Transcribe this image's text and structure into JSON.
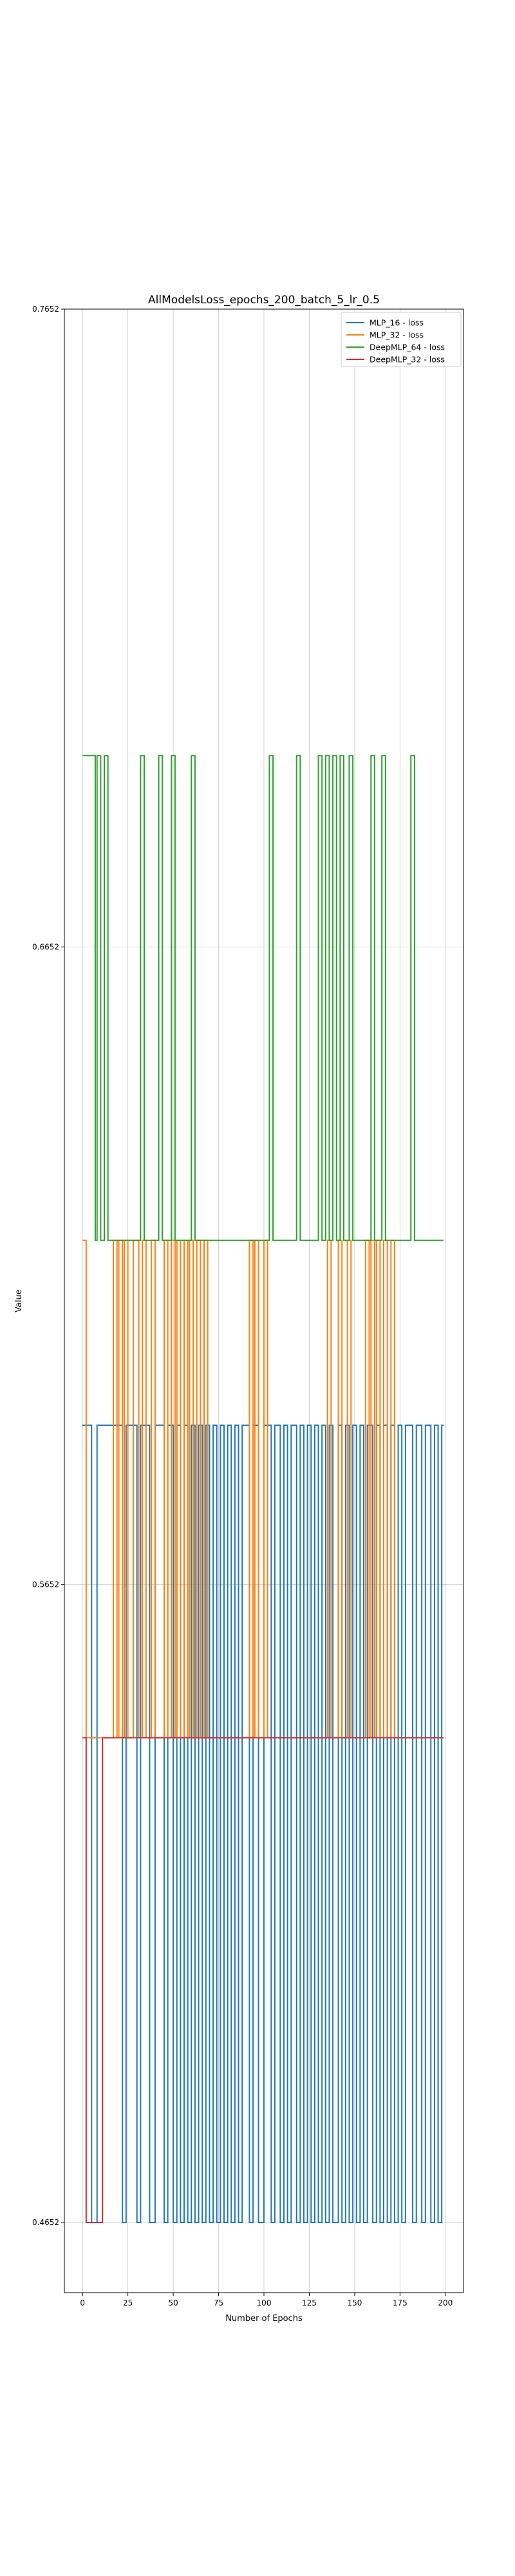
{
  "chart_data": {
    "type": "line",
    "title": "AllModelsLoss_epochs_200_batch_5_lr_0.5",
    "xlabel": "Number of Epochs",
    "ylabel": "Value",
    "xlim": [
      -10,
      210
    ],
    "ylim": [
      0.4542,
      0.7652
    ],
    "x_ticks": [
      0,
      25,
      50,
      75,
      100,
      125,
      150,
      175,
      200
    ],
    "y_ticks": [
      0.4652,
      0.5652,
      0.6652,
      0.7652
    ],
    "y_tick_labels": [
      "0.4652",
      "0.5652",
      "0.6652",
      "0.7652"
    ],
    "grid": true,
    "legend_position": "upper right",
    "series": [
      {
        "name": "MLP_16 - loss",
        "color": "#1f77b4",
        "levels": [
          0.4652,
          0.5902
        ],
        "x_start": 0,
        "x_end": 199,
        "transitions": [
          [
            0,
            1
          ],
          [
            5,
            0
          ],
          [
            8,
            1
          ],
          [
            22,
            0
          ],
          [
            24,
            1
          ],
          [
            30,
            0
          ],
          [
            32,
            1
          ],
          [
            37,
            0
          ],
          [
            40,
            1
          ],
          [
            45,
            0
          ],
          [
            47,
            1
          ],
          [
            50,
            0
          ],
          [
            52,
            1
          ],
          [
            54,
            0
          ],
          [
            56,
            1
          ],
          [
            58,
            0
          ],
          [
            60,
            1
          ],
          [
            62,
            0
          ],
          [
            64,
            1
          ],
          [
            66,
            0
          ],
          [
            68,
            1
          ],
          [
            70,
            0
          ],
          [
            72,
            1
          ],
          [
            74,
            0
          ],
          [
            76,
            1
          ],
          [
            78,
            0
          ],
          [
            80,
            1
          ],
          [
            82,
            0
          ],
          [
            84,
            1
          ],
          [
            86,
            0
          ],
          [
            88,
            1
          ],
          [
            92,
            0
          ],
          [
            94,
            1
          ],
          [
            97,
            0
          ],
          [
            100,
            1
          ],
          [
            104,
            0
          ],
          [
            106,
            1
          ],
          [
            109,
            0
          ],
          [
            111,
            1
          ],
          [
            113,
            0
          ],
          [
            115,
            1
          ],
          [
            118,
            0
          ],
          [
            120,
            1
          ],
          [
            122,
            0
          ],
          [
            124,
            1
          ],
          [
            126,
            0
          ],
          [
            128,
            1
          ],
          [
            130,
            0
          ],
          [
            132,
            1
          ],
          [
            134,
            0
          ],
          [
            136,
            1
          ],
          [
            138,
            0
          ],
          [
            141,
            1
          ],
          [
            143,
            0
          ],
          [
            145,
            1
          ],
          [
            147,
            0
          ],
          [
            149,
            1
          ],
          [
            151,
            0
          ],
          [
            153,
            1
          ],
          [
            155,
            0
          ],
          [
            157,
            1
          ],
          [
            160,
            0
          ],
          [
            162,
            1
          ],
          [
            164,
            0
          ],
          [
            166,
            1
          ],
          [
            168,
            0
          ],
          [
            170,
            1
          ],
          [
            172,
            0
          ],
          [
            174,
            1
          ],
          [
            176,
            0
          ],
          [
            178,
            1
          ],
          [
            182,
            0
          ],
          [
            184,
            1
          ],
          [
            187,
            0
          ],
          [
            189,
            1
          ],
          [
            192,
            0
          ],
          [
            194,
            1
          ],
          [
            196,
            0
          ],
          [
            198,
            1
          ]
        ]
      },
      {
        "name": "MLP_32 - loss",
        "color": "#ff7f0e",
        "levels": [
          0.5412,
          0.6192
        ],
        "x_start": 0,
        "x_end": 199,
        "transitions": [
          [
            0,
            1
          ],
          [
            2,
            0
          ],
          [
            17,
            1
          ],
          [
            19,
            0
          ],
          [
            20,
            1
          ],
          [
            22,
            0
          ],
          [
            23,
            1
          ],
          [
            25,
            0
          ],
          [
            28,
            1
          ],
          [
            31,
            0
          ],
          [
            33,
            1
          ],
          [
            35,
            0
          ],
          [
            38,
            1
          ],
          [
            40,
            0
          ],
          [
            45,
            1
          ],
          [
            47,
            0
          ],
          [
            49,
            1
          ],
          [
            51,
            0
          ],
          [
            52,
            1
          ],
          [
            54,
            0
          ],
          [
            56,
            1
          ],
          [
            58,
            0
          ],
          [
            59,
            1
          ],
          [
            61,
            0
          ],
          [
            63,
            1
          ],
          [
            65,
            0
          ],
          [
            67,
            1
          ],
          [
            69,
            0
          ],
          [
            92,
            1
          ],
          [
            94,
            0
          ],
          [
            95,
            1
          ],
          [
            97,
            0
          ],
          [
            100,
            1
          ],
          [
            102,
            0
          ],
          [
            135,
            1
          ],
          [
            137,
            0
          ],
          [
            141,
            1
          ],
          [
            143,
            0
          ],
          [
            146,
            1
          ],
          [
            148,
            0
          ],
          [
            156,
            1
          ],
          [
            158,
            0
          ],
          [
            159,
            1
          ],
          [
            161,
            0
          ],
          [
            162,
            1
          ],
          [
            164,
            0
          ],
          [
            166,
            1
          ],
          [
            168,
            0
          ],
          [
            170,
            1
          ],
          [
            172,
            0
          ]
        ]
      },
      {
        "name": "DeepMLP_64 - loss",
        "color": "#2ca02c",
        "levels": [
          0.6192,
          0.6952
        ],
        "x_start": 0,
        "x_end": 199,
        "transitions": [
          [
            5,
            1
          ],
          [
            7,
            0
          ],
          [
            8,
            1
          ],
          [
            10,
            0
          ],
          [
            12,
            1
          ],
          [
            14,
            0
          ],
          [
            32,
            1
          ],
          [
            34,
            0
          ],
          [
            42,
            1
          ],
          [
            44,
            0
          ],
          [
            49,
            1
          ],
          [
            51,
            0
          ],
          [
            60,
            1
          ],
          [
            62,
            0
          ],
          [
            103,
            1
          ],
          [
            105,
            0
          ],
          [
            118,
            1
          ],
          [
            120,
            0
          ],
          [
            130,
            1
          ],
          [
            132,
            0
          ],
          [
            134,
            1
          ],
          [
            136,
            0
          ],
          [
            138,
            1
          ],
          [
            140,
            0
          ],
          [
            142,
            1
          ],
          [
            144,
            0
          ],
          [
            147,
            1
          ],
          [
            149,
            0
          ],
          [
            159,
            1
          ],
          [
            161,
            0
          ],
          [
            165,
            1
          ],
          [
            167,
            0
          ],
          [
            181,
            1
          ],
          [
            183,
            0
          ]
        ]
      },
      {
        "name": "DeepMLP_32 - loss",
        "color": "#d62728",
        "levels": [
          0.4652,
          0.5412
        ],
        "x_start": 0,
        "x_end": 199,
        "transitions": [
          [
            0,
            1
          ],
          [
            2,
            0
          ],
          [
            11,
            1
          ]
        ]
      }
    ]
  }
}
